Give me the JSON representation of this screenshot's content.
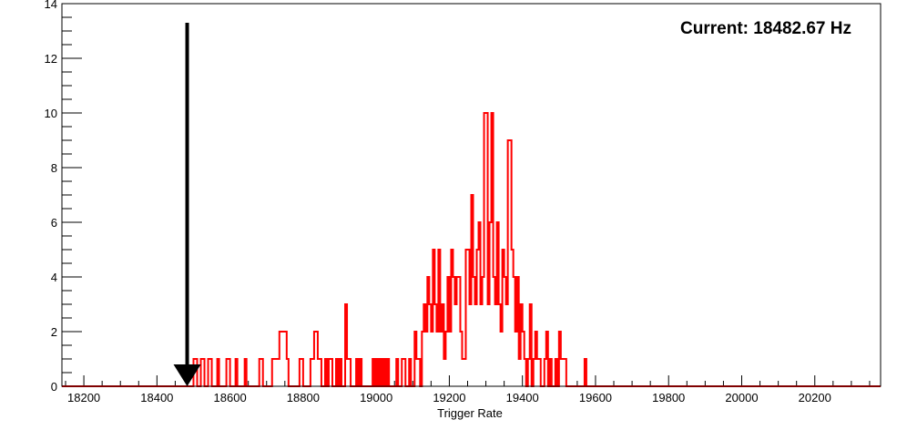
{
  "chart_data": {
    "type": "histogram",
    "title": "",
    "xlabel": "Trigger Rate",
    "ylabel": "",
    "xlim": [
      18140,
      20380
    ],
    "ylim": [
      0,
      14
    ],
    "x_ticks": [
      18200,
      18400,
      18600,
      18800,
      19000,
      19200,
      19400,
      19600,
      19800,
      20000,
      20200
    ],
    "y_ticks": [
      0,
      2,
      4,
      6,
      8,
      10,
      12,
      14
    ],
    "grid": false,
    "legend": "none",
    "annotation": "Current: 18482.67 Hz",
    "marker": {
      "x": 18482.67,
      "y_top": 13.3
    },
    "colors": {
      "series": "#ff0000",
      "marker": "#000000"
    },
    "bins": [
      [
        18140,
        0
      ],
      [
        18500,
        1
      ],
      [
        18510,
        0
      ],
      [
        18520,
        1
      ],
      [
        18530,
        0
      ],
      [
        18540,
        1
      ],
      [
        18550,
        0
      ],
      [
        18565,
        1
      ],
      [
        18570,
        0
      ],
      [
        18590,
        1
      ],
      [
        18600,
        0
      ],
      [
        18615,
        1
      ],
      [
        18620,
        0
      ],
      [
        18640,
        1
      ],
      [
        18645,
        0
      ],
      [
        18680,
        1
      ],
      [
        18690,
        0
      ],
      [
        18715,
        1
      ],
      [
        18735,
        2
      ],
      [
        18755,
        1
      ],
      [
        18760,
        0
      ],
      [
        18790,
        1
      ],
      [
        18800,
        0
      ],
      [
        18820,
        1
      ],
      [
        18830,
        2
      ],
      [
        18840,
        1
      ],
      [
        18850,
        0
      ],
      [
        18860,
        1
      ],
      [
        18865,
        0
      ],
      [
        18870,
        1
      ],
      [
        18880,
        0
      ],
      [
        18890,
        1
      ],
      [
        18895,
        0
      ],
      [
        18900,
        1
      ],
      [
        18905,
        0
      ],
      [
        18915,
        3
      ],
      [
        18920,
        1
      ],
      [
        18930,
        0
      ],
      [
        18945,
        1
      ],
      [
        18950,
        0
      ],
      [
        18955,
        1
      ],
      [
        18960,
        0
      ],
      [
        18990,
        1
      ],
      [
        18995,
        0
      ],
      [
        19000,
        1
      ],
      [
        19005,
        0
      ],
      [
        19010,
        1
      ],
      [
        19015,
        0
      ],
      [
        19020,
        1
      ],
      [
        19025,
        0
      ],
      [
        19030,
        1
      ],
      [
        19035,
        0
      ],
      [
        19055,
        1
      ],
      [
        19060,
        0
      ],
      [
        19070,
        1
      ],
      [
        19080,
        0
      ],
      [
        19090,
        1
      ],
      [
        19095,
        0
      ],
      [
        19105,
        2
      ],
      [
        19110,
        1
      ],
      [
        19120,
        0
      ],
      [
        19125,
        2
      ],
      [
        19130,
        3
      ],
      [
        19135,
        2
      ],
      [
        19140,
        4
      ],
      [
        19145,
        3
      ],
      [
        19150,
        2
      ],
      [
        19155,
        5
      ],
      [
        19160,
        3
      ],
      [
        19165,
        2
      ],
      [
        19170,
        5
      ],
      [
        19175,
        2
      ],
      [
        19180,
        3
      ],
      [
        19185,
        1
      ],
      [
        19190,
        2
      ],
      [
        19195,
        4
      ],
      [
        19200,
        2
      ],
      [
        19205,
        5
      ],
      [
        19210,
        4
      ],
      [
        19215,
        3
      ],
      [
        19220,
        4
      ],
      [
        19230,
        2
      ],
      [
        19235,
        1
      ],
      [
        19245,
        5
      ],
      [
        19255,
        3
      ],
      [
        19260,
        7
      ],
      [
        19265,
        4
      ],
      [
        19270,
        3
      ],
      [
        19275,
        5
      ],
      [
        19280,
        6
      ],
      [
        19285,
        3
      ],
      [
        19290,
        4
      ],
      [
        19295,
        10
      ],
      [
        19305,
        3
      ],
      [
        19310,
        6
      ],
      [
        19315,
        10
      ],
      [
        19320,
        4
      ],
      [
        19325,
        3
      ],
      [
        19330,
        6
      ],
      [
        19335,
        3
      ],
      [
        19340,
        2
      ],
      [
        19345,
        5
      ],
      [
        19350,
        4
      ],
      [
        19355,
        3
      ],
      [
        19360,
        9
      ],
      [
        19370,
        5
      ],
      [
        19375,
        4
      ],
      [
        19380,
        2
      ],
      [
        19385,
        4
      ],
      [
        19390,
        1
      ],
      [
        19395,
        3
      ],
      [
        19400,
        2
      ],
      [
        19405,
        1
      ],
      [
        19410,
        0
      ],
      [
        19415,
        1
      ],
      [
        19420,
        3
      ],
      [
        19425,
        0
      ],
      [
        19430,
        1
      ],
      [
        19435,
        2
      ],
      [
        19440,
        1
      ],
      [
        19450,
        0
      ],
      [
        19460,
        1
      ],
      [
        19465,
        2
      ],
      [
        19470,
        0
      ],
      [
        19475,
        1
      ],
      [
        19480,
        0
      ],
      [
        19490,
        1
      ],
      [
        19495,
        0
      ],
      [
        19500,
        2
      ],
      [
        19505,
        1
      ],
      [
        19520,
        0
      ],
      [
        19570,
        1
      ],
      [
        19575,
        0
      ]
    ]
  }
}
